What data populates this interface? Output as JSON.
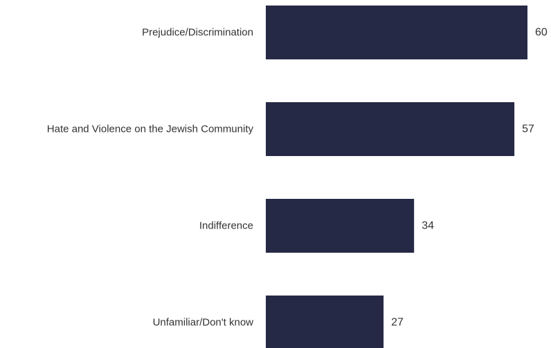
{
  "chart_data": {
    "type": "bar",
    "orientation": "horizontal",
    "categories": [
      "Prejudice/Discrimination",
      "Hate and Violence on the Jewish Community",
      "Indifference ",
      "Unfamiliar/Don't know"
    ],
    "values": [
      60,
      57,
      34,
      27
    ],
    "data_labels": [
      "60",
      "57",
      "34",
      "27"
    ],
    "xlim": [
      0,
      60
    ],
    "grid": false,
    "legend": "none",
    "colors": {
      "bar": "#252945"
    }
  }
}
